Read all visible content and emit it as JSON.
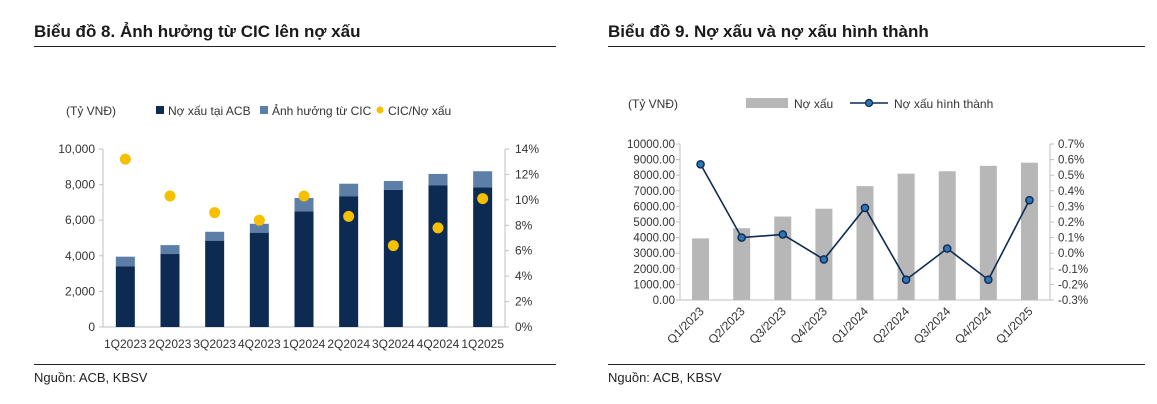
{
  "left": {
    "title": "Biểu đồ 8. Ảnh hưởng từ CIC lên nợ xấu",
    "source": "Nguồn: ACB, KBSV",
    "unit_label": "(Tỷ VNĐ)",
    "colors": {
      "acb": "#0d2a52",
      "cic": "#5d7ea6",
      "ratio": "#f5c000"
    },
    "chart_data": {
      "type": "bar",
      "stacked": true,
      "categories": [
        "1Q2023",
        "2Q2023",
        "3Q2023",
        "4Q2023",
        "1Q2024",
        "2Q2024",
        "3Q2024",
        "4Q2024",
        "1Q2025"
      ],
      "series": [
        {
          "name": "Nợ xấu tại ACB",
          "values": [
            3400,
            4100,
            4850,
            5300,
            6500,
            7350,
            7700,
            7950,
            7850
          ]
        },
        {
          "name": "Ảnh hưởng từ CIC",
          "values": [
            550,
            500,
            500,
            500,
            750,
            700,
            500,
            650,
            900
          ]
        },
        {
          "name": "CIC/Nợ xấu",
          "type": "scatter",
          "axis": "right",
          "values": [
            13.2,
            10.3,
            9.0,
            8.4,
            10.3,
            8.7,
            6.4,
            7.8,
            10.1
          ]
        }
      ],
      "ylim": [
        0,
        10000
      ],
      "yticks": [
        "0",
        "2,000",
        "4,000",
        "6,000",
        "8,000",
        "10,000"
      ],
      "y2lim": [
        0,
        14
      ],
      "y2ticks": [
        "0%",
        "2%",
        "4%",
        "6%",
        "8%",
        "10%",
        "12%",
        "14%"
      ],
      "legend": "top"
    }
  },
  "right": {
    "title": "Biểu đồ 9. Nợ xấu và nợ xấu hình thành",
    "source": "Nguồn: ACB, KBSV",
    "unit_label": "(Tỷ VNĐ)",
    "colors": {
      "bar": "#b7b7b7",
      "line": "#0d2a52",
      "marker": "#2e75b6"
    },
    "chart_data": {
      "type": "bar",
      "categories": [
        "Q1/2023",
        "Q2/2023",
        "Q3/2023",
        "Q4/2023",
        "Q1/2024",
        "Q2/2024",
        "Q3/2024",
        "Q4/2024",
        "Q1/2025"
      ],
      "series": [
        {
          "name": "Nợ xấu",
          "values": [
            3950,
            4600,
            5350,
            5850,
            7300,
            8100,
            8250,
            8600,
            8800
          ]
        },
        {
          "name": "Nợ xấu hình thành",
          "type": "line",
          "axis": "right",
          "values": [
            0.57,
            0.1,
            0.12,
            -0.04,
            0.29,
            -0.17,
            0.03,
            -0.17,
            0.34
          ]
        }
      ],
      "ylim": [
        0,
        10000
      ],
      "yticks": [
        "0.00",
        "1000.00",
        "2000.00",
        "3000.00",
        "4000.00",
        "5000.00",
        "6000.00",
        "7000.00",
        "8000.00",
        "9000.00",
        "10000.00"
      ],
      "y2lim": [
        -0.3,
        0.7
      ],
      "y2ticks": [
        "-0.3%",
        "-0.2%",
        "-0.1%",
        "0.0%",
        "0.1%",
        "0.2%",
        "0.3%",
        "0.4%",
        "0.5%",
        "0.6%",
        "0.7%"
      ],
      "legend": "top"
    }
  }
}
